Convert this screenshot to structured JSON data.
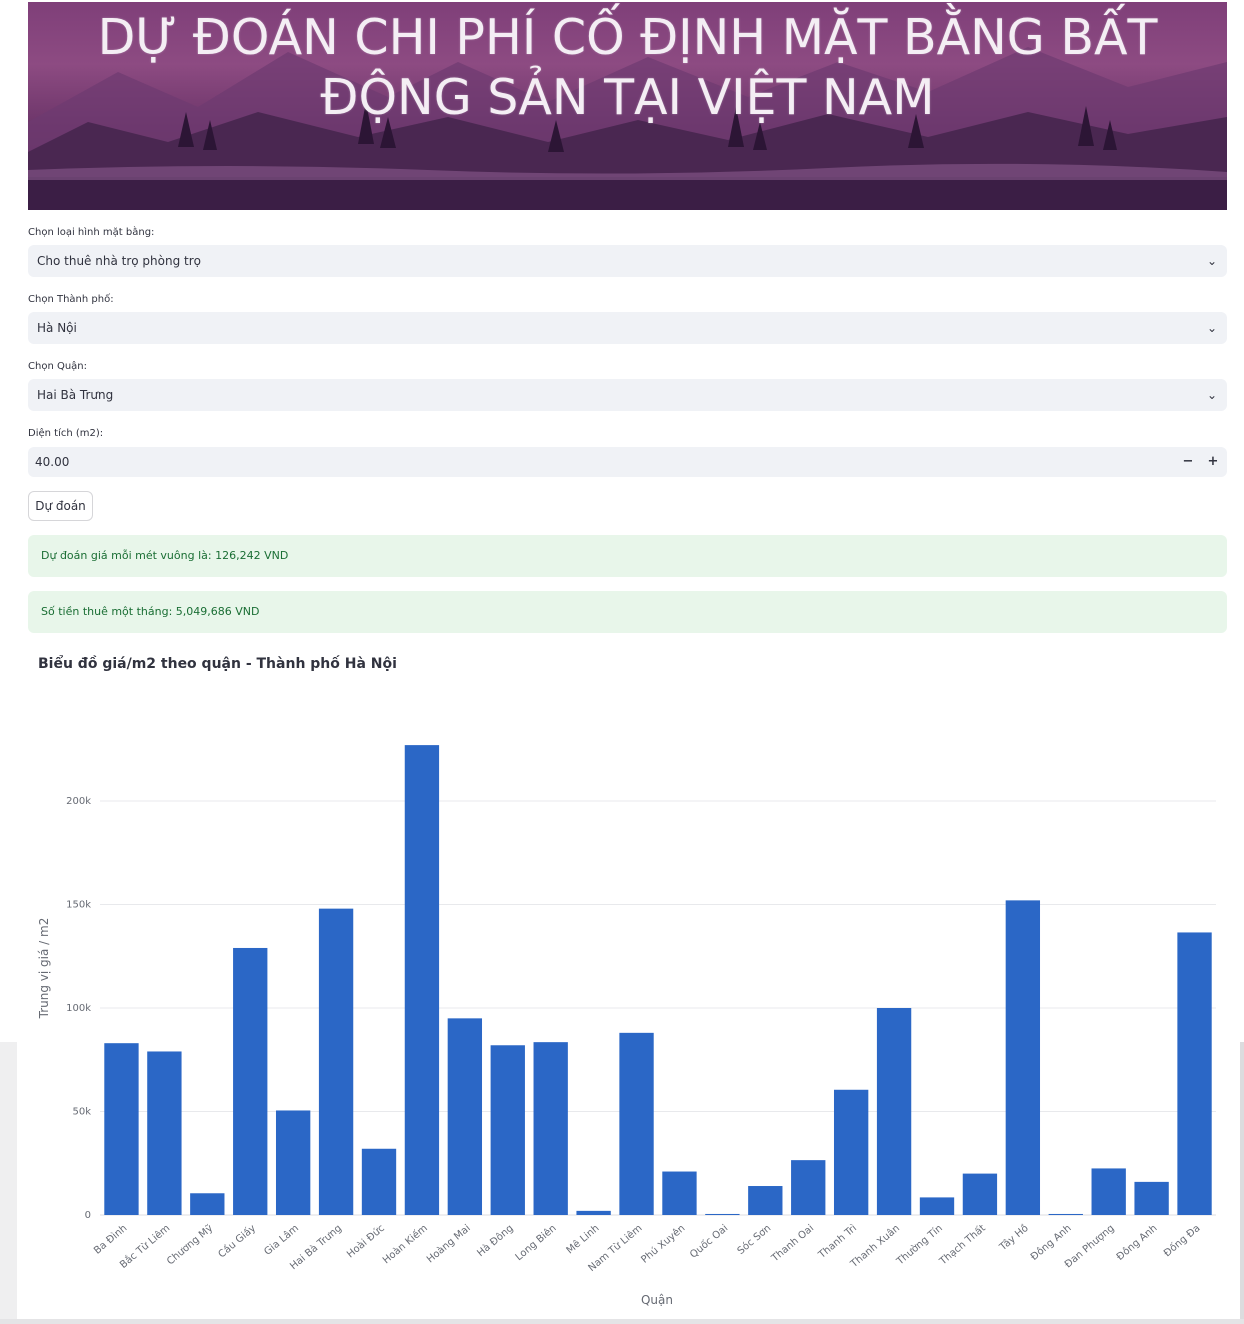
{
  "banner": {
    "title_line1": "DỰ ĐOÁN CHI PHÍ CỐ ĐỊNH MẶT BẰNG BẤT",
    "title_line2": "ĐỘNG SẢN TẠI VIỆT NAM"
  },
  "form": {
    "type_label": "Chọn loại hình mặt bằng:",
    "type_value": "Cho thuê nhà trọ phòng trọ",
    "city_label": "Chọn Thành phố:",
    "city_value": "Hà Nội",
    "district_label": "Chọn Quận:",
    "district_value": "Hai Bà Trưng",
    "area_label": "Diện tích (m2):",
    "area_value": "40.00",
    "minus": "−",
    "plus": "+",
    "predict_button": "Dự đoán"
  },
  "results": {
    "price_per_m2": "Dự đoán giá mỗi mét vuông là: 126,242 VND",
    "monthly_rent": "Số tiền thuê một tháng: 5,049,686 VND"
  },
  "chart_title": "Biểu đồ giá/m2 theo quận - Thành phố Hà Nội",
  "chart_data": {
    "type": "bar",
    "title": "Biểu đồ giá/m2 theo quận - Thành phố Hà Nội",
    "xlabel": "Quận",
    "ylabel": "Trung vị giá / m2",
    "ylim": [
      0,
      230000
    ],
    "yticks": [
      0,
      50000,
      100000,
      150000,
      200000
    ],
    "ytick_labels": [
      "0",
      "50k",
      "100k",
      "150k",
      "200k"
    ],
    "grid": true,
    "color": "#2b67c6",
    "categories": [
      "Ba Đình",
      "Bắc Từ Liêm",
      "Chương Mỹ",
      "Cầu Giấy",
      "Gia Lâm",
      "Hai Bà Trưng",
      "Hoài Đức",
      "Hoàn Kiếm",
      "Hoàng Mai",
      "Hà Đông",
      "Long Biên",
      "Mê Linh",
      "Nam Từ Liêm",
      "Phú Xuyên",
      "Quốc Oai",
      "Sóc Sơn",
      "Thanh Oai",
      "Thanh Trì",
      "Thanh Xuân",
      "Thường Tín",
      "Thạch Thất",
      "Tây Hồ",
      "Đông Anh",
      "Đan Phượng",
      "Đông Anh",
      "Đống Đa"
    ],
    "values": [
      83000,
      79000,
      10500,
      129000,
      50500,
      148000,
      32000,
      227000,
      95000,
      82000,
      83500,
      2000,
      88000,
      21000,
      500,
      14000,
      26500,
      60500,
      100000,
      8500,
      20000,
      152000,
      500,
      22500,
      16000,
      136500
    ]
  }
}
